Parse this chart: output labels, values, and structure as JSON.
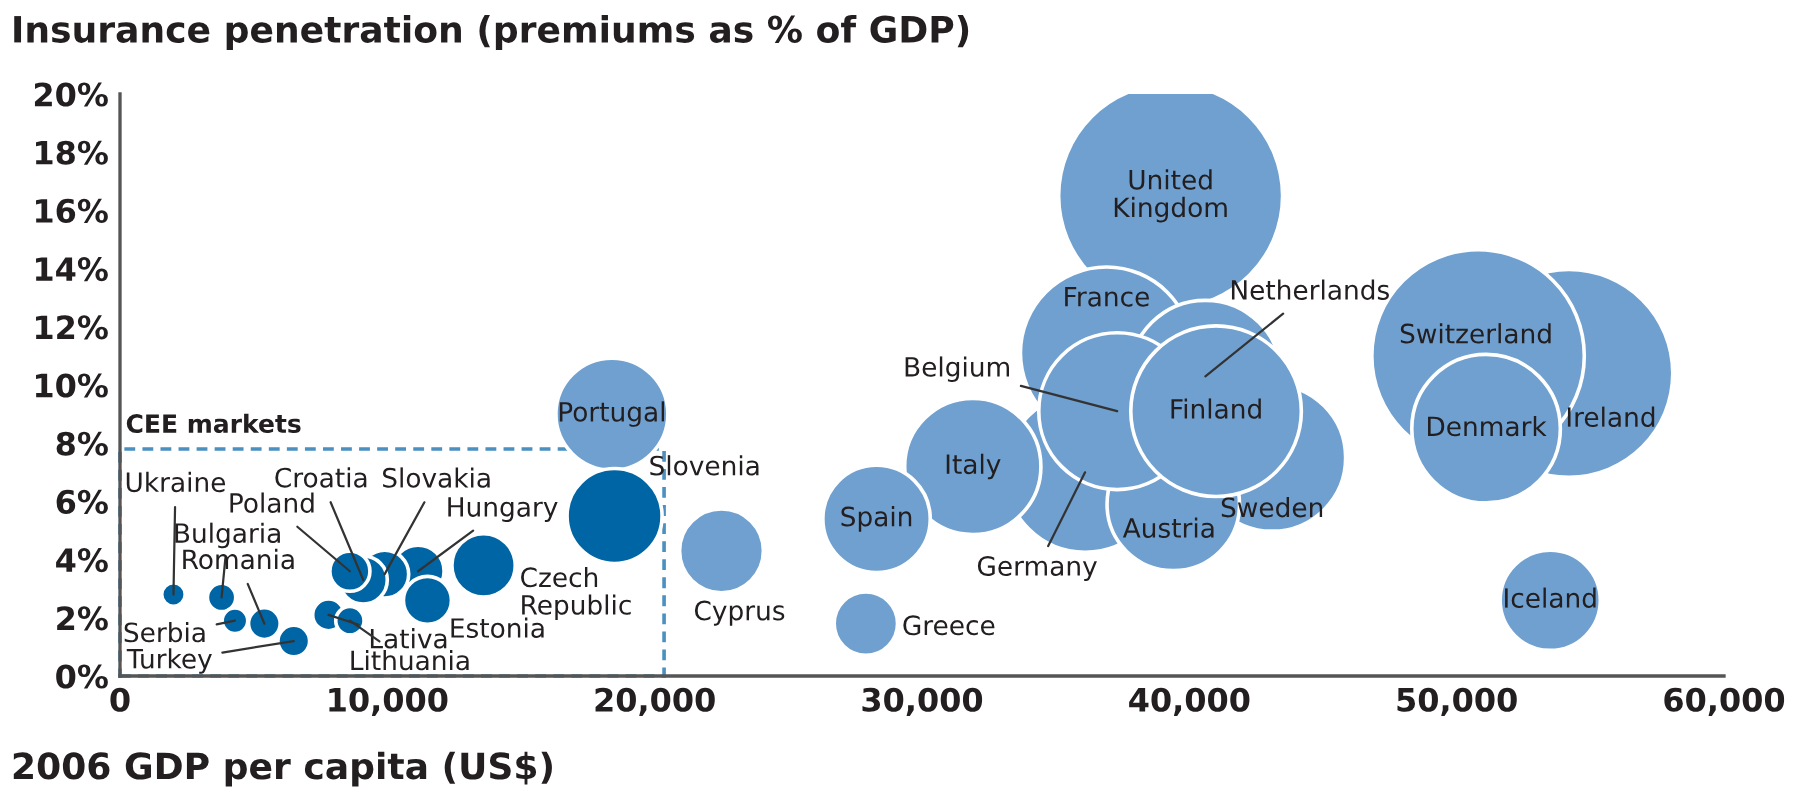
{
  "chart_data": {
    "type": "bubble",
    "title": "Insurance penetration (premiums as % of GDP)",
    "xlabel": "2006 GDP per capita (US$)",
    "xlim": [
      0,
      60000
    ],
    "xticks": [
      0,
      {
        "value": 10000,
        "label": "10,000"
      },
      {
        "value": 20000,
        "label": "20,000"
      },
      {
        "value": 30000,
        "label": "30,000"
      },
      {
        "value": 40000,
        "label": "40,000"
      },
      {
        "value": 50000,
        "label": "50,000"
      },
      {
        "value": 60000,
        "label": "60,000"
      }
    ],
    "ylim": [
      0,
      20
    ],
    "yticks": [
      {
        "value": 0,
        "label": "0%"
      },
      {
        "value": 2,
        "label": "2%"
      },
      {
        "value": 4,
        "label": "4%"
      },
      {
        "value": 6,
        "label": "6%"
      },
      {
        "value": 8,
        "label": "8%"
      },
      {
        "value": 10,
        "label": "10%"
      },
      {
        "value": 12,
        "label": "12%"
      },
      {
        "value": 14,
        "label": "14%"
      },
      {
        "value": 16,
        "label": "16%"
      },
      {
        "value": 18,
        "label": "18%"
      },
      {
        "value": 20,
        "label": "20%"
      }
    ],
    "grid": false,
    "legend": false,
    "series": [
      {
        "color": "#6fa0cf",
        "x": [
          39300,
          36900,
          36100,
          40600,
          43100,
          39400,
          37300,
          41000,
          31900,
          28300,
          27900,
          22500,
          18400,
          54200,
          50800,
          51100,
          53500
        ],
        "values": [
          16.5,
          11.1,
          7.0,
          10.3,
          7.5,
          5.9,
          9.1,
          9.1,
          7.2,
          5.4,
          1.8,
          4.3,
          9.0,
          10.4,
          11.0,
          8.5,
          2.6
        ],
        "sizes": [
          1,
          0.59,
          0.51,
          0.46,
          0.43,
          0.35,
          0.49,
          0.58,
          0.37,
          0.23,
          0.08,
          0.14,
          0.25,
          0.86,
          0.9,
          0.44,
          0.2
        ]
      },
      {
        "color": "#0065a4",
        "x": [
          18500,
          13600,
          11150,
          9900,
          11500,
          9100,
          8600,
          2000,
          3800,
          5400,
          4300,
          6500,
          7800,
          8600
        ],
        "values": [
          5.5,
          3.8,
          3.6,
          3.5,
          2.6,
          3.3,
          3.6,
          2.8,
          2.7,
          1.8,
          1.9,
          1.2,
          2.1,
          1.9
        ],
        "sizes": [
          0.18,
          0.08,
          0.054,
          0.046,
          0.046,
          0.046,
          0.032,
          0.011,
          0.016,
          0.02,
          0.013,
          0.02,
          0.02,
          0.016
        ]
      }
    ],
    "annotations": [
      {
        "text": "United\nKingdom",
        "x": 39300,
        "y": 16.5
      },
      {
        "text": "France",
        "x": 36900,
        "y": 11.1
      },
      {
        "text": "Germany",
        "x": 36100,
        "y": 7.0
      },
      {
        "text": "Netherlands",
        "x": 40600,
        "y": 10.3
      },
      {
        "text": "Sweden",
        "x": 43100,
        "y": 7.5
      },
      {
        "text": "Austria",
        "x": 39400,
        "y": 5.9
      },
      {
        "text": "Belgium",
        "x": 37300,
        "y": 9.1
      },
      {
        "text": "Finland",
        "x": 41000,
        "y": 9.1
      },
      {
        "text": "Italy",
        "x": 31900,
        "y": 7.2
      },
      {
        "text": "Spain",
        "x": 28300,
        "y": 5.4
      },
      {
        "text": "Greece",
        "x": 27900,
        "y": 1.8
      },
      {
        "text": "Cyprus",
        "x": 22500,
        "y": 4.3
      },
      {
        "text": "Portugal",
        "x": 18400,
        "y": 9.0
      },
      {
        "text": "Ireland",
        "x": 54200,
        "y": 10.4
      },
      {
        "text": "Switzerland",
        "x": 50800,
        "y": 11.0
      },
      {
        "text": "Denmark",
        "x": 51100,
        "y": 8.5
      },
      {
        "text": "Iceland",
        "x": 53500,
        "y": 2.6
      },
      {
        "text": "Slovenia",
        "x": 18500,
        "y": 5.5
      },
      {
        "text": "Czech\nRepublic",
        "x": 13600,
        "y": 3.8
      },
      {
        "text": "Hungary",
        "x": 11150,
        "y": 3.6
      },
      {
        "text": "Slovakia",
        "x": 9900,
        "y": 3.5
      },
      {
        "text": "Estonia",
        "x": 11500,
        "y": 2.6
      },
      {
        "text": "Croatia",
        "x": 9100,
        "y": 3.3
      },
      {
        "text": "Poland",
        "x": 8600,
        "y": 3.6
      },
      {
        "text": "Ukraine",
        "x": 2000,
        "y": 2.8
      },
      {
        "text": "Bulgaria",
        "x": 3800,
        "y": 2.7
      },
      {
        "text": "Romania",
        "x": 5400,
        "y": 1.8
      },
      {
        "text": "Serbia",
        "x": 4300,
        "y": 1.9
      },
      {
        "text": "Turkey",
        "x": 6500,
        "y": 1.2
      },
      {
        "text": "Lativa",
        "x": 7800,
        "y": 2.1
      },
      {
        "text": "Lithuania",
        "x": 8600,
        "y": 1.9
      },
      "CEE markets"
    ]
  }
}
